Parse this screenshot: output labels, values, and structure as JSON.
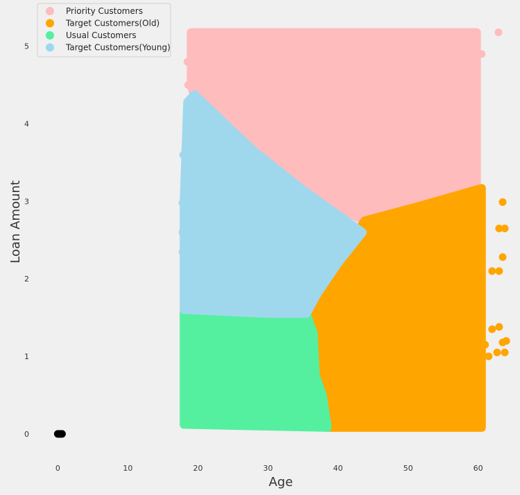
{
  "chart_data": {
    "type": "scatter",
    "title": "",
    "xlabel": "Age",
    "ylabel": "Loan Amount",
    "xlim": [
      -3.5,
      63.5
    ],
    "ylim": [
      -0.35,
      5.4
    ],
    "xticks": [
      0,
      10,
      20,
      30,
      40,
      50,
      60
    ],
    "yticks": [
      0,
      1,
      2,
      3,
      4,
      5
    ],
    "grid": false,
    "legend_position": "top-left",
    "series": [
      {
        "name": "Priority Customers",
        "color": "#ffbcbc",
        "region": [
          [
            19,
            5.18
          ],
          [
            59.8,
            5.18
          ],
          [
            59.8,
            3.17
          ],
          [
            52,
            2.95
          ],
          [
            43,
            2.78
          ],
          [
            35,
            3.15
          ],
          [
            28,
            3.65
          ],
          [
            19.5,
            4.35
          ],
          [
            19,
            4.5
          ]
        ],
        "extra_points": [
          [
            18.5,
            4.8
          ],
          [
            18.6,
            4.5
          ],
          [
            60.5,
            4.9
          ],
          [
            62.9,
            5.18
          ]
        ]
      },
      {
        "name": "Target Customers(Old)",
        "color": "#ffa500",
        "region": [
          [
            43.8,
            2.75
          ],
          [
            52,
            2.95
          ],
          [
            60.5,
            3.17
          ],
          [
            60.5,
            0.08
          ],
          [
            38.5,
            0.08
          ],
          [
            37.8,
            0.5
          ],
          [
            36.8,
            0.75
          ],
          [
            36.5,
            1.3
          ],
          [
            35.5,
            1.55
          ],
          [
            37,
            1.8
          ],
          [
            40,
            2.2
          ],
          [
            42,
            2.5
          ]
        ],
        "extra_points": [
          [
            63.5,
            2.99
          ],
          [
            63,
            2.65
          ],
          [
            63.8,
            2.65
          ],
          [
            63.5,
            2.28
          ],
          [
            62,
            2.1
          ],
          [
            63,
            2.1
          ],
          [
            62,
            1.35
          ],
          [
            63,
            1.38
          ],
          [
            61.5,
            1.0
          ],
          [
            62.7,
            1.05
          ],
          [
            63.8,
            1.05
          ],
          [
            63.5,
            1.18
          ],
          [
            61,
            1.15
          ],
          [
            64,
            1.2
          ]
        ]
      },
      {
        "name": "Usual Customers",
        "color": "#55efa0",
        "region": [
          [
            18,
            1.6
          ],
          [
            30,
            1.55
          ],
          [
            35.5,
            1.55
          ],
          [
            36.5,
            1.3
          ],
          [
            36.8,
            0.75
          ],
          [
            37.8,
            0.5
          ],
          [
            38.5,
            0.08
          ],
          [
            18,
            0.12
          ]
        ],
        "extra_points": [
          [
            38.4,
            0.1
          ]
        ]
      },
      {
        "name": "Target Customers(Young)",
        "color": "#9fd8ed",
        "region": [
          [
            18.5,
            4.28
          ],
          [
            19.5,
            4.38
          ],
          [
            28,
            3.65
          ],
          [
            35,
            3.15
          ],
          [
            43.5,
            2.6
          ],
          [
            40,
            2.2
          ],
          [
            37,
            1.8
          ],
          [
            35.5,
            1.55
          ],
          [
            30,
            1.55
          ],
          [
            18,
            1.6
          ],
          [
            18,
            3.0
          ]
        ],
        "extra_points": [
          [
            17.9,
            3.6
          ],
          [
            17.8,
            2.98
          ],
          [
            17.8,
            2.6
          ],
          [
            17.8,
            2.35
          ]
        ]
      },
      {
        "name": "",
        "color": "#000000",
        "region": [],
        "extra_points": [
          [
            0,
            0
          ],
          [
            0.2,
            0
          ],
          [
            0.4,
            0
          ],
          [
            0.6,
            0
          ]
        ]
      }
    ]
  }
}
